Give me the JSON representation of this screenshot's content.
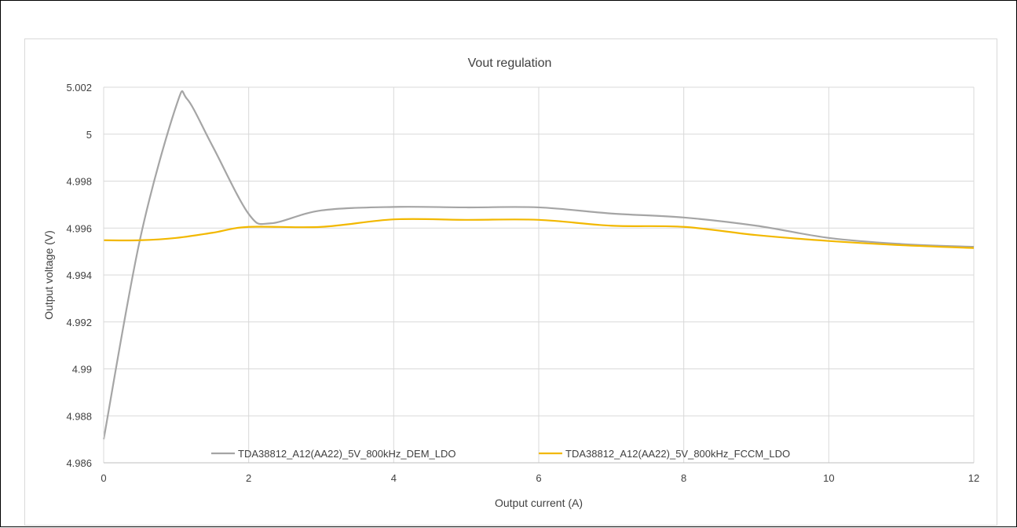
{
  "chart_data": {
    "type": "line",
    "title": "Vout regulation",
    "xlabel": "Output current (A)",
    "ylabel": "Output voltage (V)",
    "xlim": [
      0,
      12
    ],
    "ylim": [
      4.986,
      5.002
    ],
    "x_ticks": [
      0,
      2,
      4,
      6,
      8,
      10,
      12
    ],
    "y_ticks": [
      4.986,
      4.988,
      4.99,
      4.992,
      4.994,
      4.996,
      4.998,
      5,
      5.002
    ],
    "x_tick_labels": [
      "0",
      "2",
      "4",
      "6",
      "8",
      "10",
      "12"
    ],
    "y_tick_labels": [
      "4.986",
      "4.988",
      "4.99",
      "4.992",
      "4.994",
      "4.996",
      "4.998",
      "5",
      "5.002"
    ],
    "grid": true,
    "legend_position": "bottom-inside",
    "series": [
      {
        "name": "TDA38812_A12(AA22)_5V_800kHz_DEM_LDO",
        "color": "#a5a5a5",
        "x": [
          0,
          0.5,
          1,
          1.15,
          1.5,
          2,
          2.3,
          3,
          4,
          5,
          6,
          7,
          8,
          9,
          10,
          11,
          12
        ],
        "y": [
          4.987,
          4.9955,
          5.0012,
          5.0015,
          4.9995,
          4.9966,
          4.9962,
          4.99675,
          4.9969,
          4.99688,
          4.99688,
          4.99662,
          4.99645,
          4.9961,
          4.99558,
          4.99532,
          4.9952
        ]
      },
      {
        "name": "TDA38812_A12(AA22)_5V_800kHz_FCCM_LDO",
        "color": "#f2b800",
        "x": [
          0,
          0.5,
          1,
          1.5,
          2,
          3,
          4,
          5,
          6,
          7,
          8,
          9,
          10,
          11,
          12
        ],
        "y": [
          4.99548,
          4.99548,
          4.99558,
          4.9958,
          4.99605,
          4.99605,
          4.99637,
          4.99635,
          4.99635,
          4.9961,
          4.99605,
          4.9957,
          4.99545,
          4.99527,
          4.99515
        ]
      }
    ]
  }
}
